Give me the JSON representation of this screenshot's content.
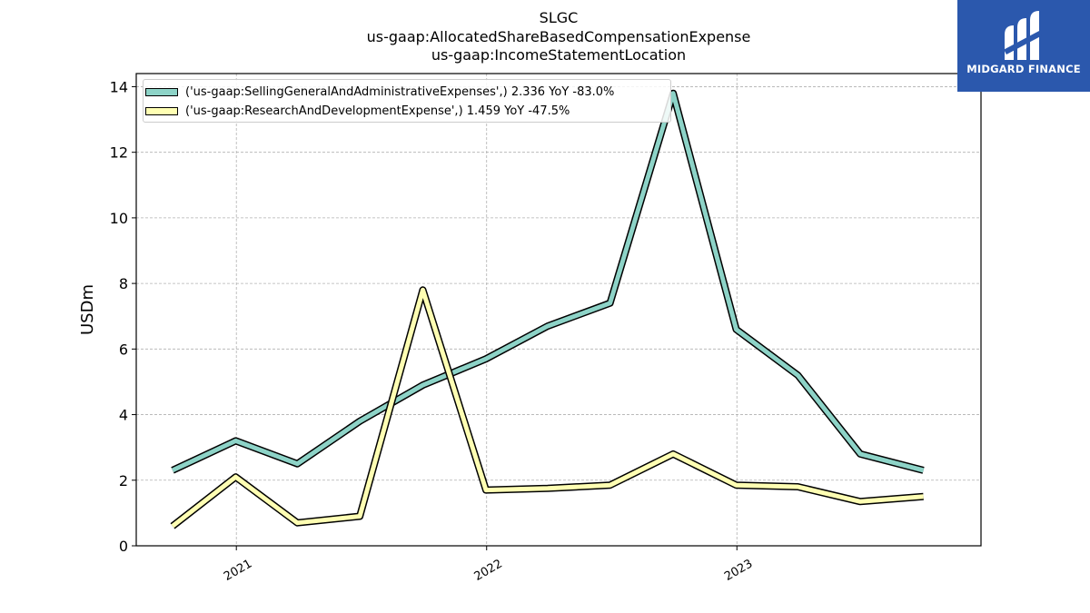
{
  "titles": {
    "line1": "SLGC",
    "line2": "us-gaap:AllocatedShareBasedCompensationExpense",
    "line3": "us-gaap:IncomeStatementLocation"
  },
  "logo": {
    "text": "MIDGARD FINANCE",
    "color": "#2b58ad"
  },
  "chart_data": {
    "type": "line",
    "ylabel": "USDm",
    "xlabel": "",
    "ylim": [
      0,
      14.4
    ],
    "yticks": [
      0,
      2,
      4,
      6,
      8,
      10,
      12,
      14
    ],
    "xlim": [
      "2020-08-08",
      "2023-12-23"
    ],
    "xticks": [
      {
        "date": "2021-01-01",
        "label": "2021"
      },
      {
        "date": "2022-01-01",
        "label": "2022"
      },
      {
        "date": "2023-01-01",
        "label": "2023"
      }
    ],
    "grid": true,
    "legend_position": "top-left",
    "x": [
      "2020-09-30",
      "2020-12-31",
      "2021-03-31",
      "2021-06-30",
      "2021-09-30",
      "2021-12-31",
      "2022-03-31",
      "2022-06-30",
      "2022-09-30",
      "2022-12-31",
      "2023-03-31",
      "2023-06-30",
      "2023-09-30"
    ],
    "series": [
      {
        "name": "('us-gaap:SellingGeneralAndAdministrativeExpenses',) 2.336 YoY -83.0%",
        "color": "#8dd3c7",
        "values": [
          2.3,
          3.2,
          2.5,
          3.8,
          4.9,
          5.7,
          6.7,
          7.4,
          13.8,
          6.6,
          5.2,
          2.8,
          2.3
        ]
      },
      {
        "name": "('us-gaap:ResearchAndDevelopmentExpense',) 1.459 YoY -47.5%",
        "color": "#ffffb3",
        "values": [
          0.6,
          2.1,
          0.7,
          0.9,
          7.8,
          1.7,
          1.75,
          1.85,
          2.8,
          1.85,
          1.8,
          1.35,
          1.5
        ]
      }
    ]
  }
}
